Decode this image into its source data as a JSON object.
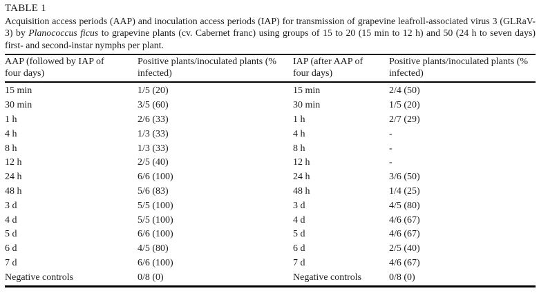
{
  "colors": {
    "rule": "#000000",
    "text": "#1b1b1b",
    "background": "#ffffff"
  },
  "page": {
    "title": "TABLE 1",
    "caption": {
      "part1": "Acquisition access periods (AAP) and inoculation access periods (IAP) for transmission of grapevine leafroll-associated virus 3 (GLRaV-3) by ",
      "italic_species": "Planococcus ficus",
      "part2": " to grapevine plants (cv. Cabernet franc) using groups of 15 to 20 (15 min to 12 h) and 50 (24 h to seven days) first- and second-instar nymphs per plant."
    }
  },
  "table": {
    "headers": [
      "AAP (followed by IAP of four days)",
      "Positive plants/inoculated plants (% infected)",
      "IAP (after AAP of four days)",
      "Positive plants/inoculated plants (% infected)"
    ],
    "rows": [
      {
        "aap": "15 min",
        "aap_result": "1/5 (20)",
        "iap": "15 min",
        "iap_result": "2/4 (50)"
      },
      {
        "aap": "30 min",
        "aap_result": "3/5 (60)",
        "iap": "30 min",
        "iap_result": "1/5 (20)"
      },
      {
        "aap": "1 h",
        "aap_result": "2/6 (33)",
        "iap": "1 h",
        "iap_result": "2/7 (29)"
      },
      {
        "aap": "4 h",
        "aap_result": "1/3 (33)",
        "iap": "4 h",
        "iap_result": "-"
      },
      {
        "aap": "8 h",
        "aap_result": "1/3 (33)",
        "iap": "8 h",
        "iap_result": "-"
      },
      {
        "aap": "12 h",
        "aap_result": "2/5 (40)",
        "iap": "12 h",
        "iap_result": "-"
      },
      {
        "aap": "24 h",
        "aap_result": "6/6 (100)",
        "iap": "24 h",
        "iap_result": "3/6 (50)"
      },
      {
        "aap": "48 h",
        "aap_result": "5/6 (83)",
        "iap": "48 h",
        "iap_result": "1/4 (25)"
      },
      {
        "aap": "3 d",
        "aap_result": "5/5 (100)",
        "iap": "3 d",
        "iap_result": "4/5 (80)"
      },
      {
        "aap": "4 d",
        "aap_result": "5/5 (100)",
        "iap": "4 d",
        "iap_result": "4/6 (67)"
      },
      {
        "aap": "5 d",
        "aap_result": "6/6 (100)",
        "iap": "5 d",
        "iap_result": "4/6 (67)"
      },
      {
        "aap": "6 d",
        "aap_result": "4/5 (80)",
        "iap": "6 d",
        "iap_result": "2/5 (40)"
      },
      {
        "aap": "7 d",
        "aap_result": "6/6 (100)",
        "iap": "7 d",
        "iap_result": "4/6 (67)"
      },
      {
        "aap": "Negative controls",
        "aap_result": "0/8 (0)",
        "iap": "Negative controls",
        "iap_result": "0/8 (0)"
      }
    ]
  }
}
